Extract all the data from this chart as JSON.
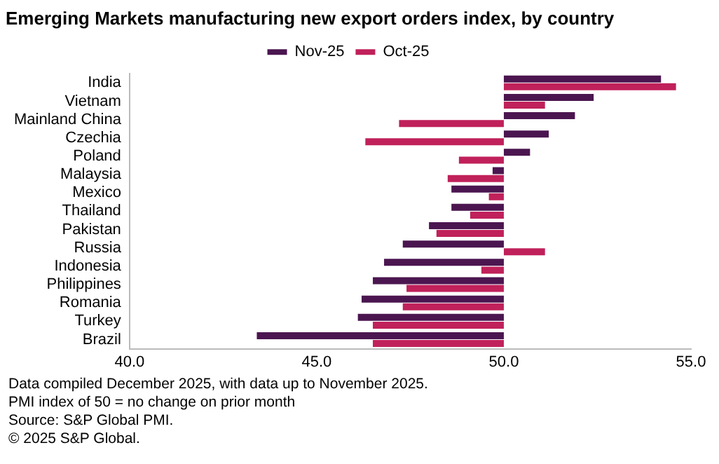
{
  "chart_data": {
    "type": "bar",
    "orientation": "horizontal",
    "title": "Emerging Markets manufacturing new export orders index, by country",
    "categories": [
      "India",
      "Vietnam",
      "Mainland China",
      "Czechia",
      "Poland",
      "Malaysia",
      "Mexico",
      "Thailand",
      "Pakistan",
      "Russia",
      "Indonesia",
      "Philippines",
      "Romania",
      "Turkey",
      "Brazil"
    ],
    "series": [
      {
        "name": "Nov-25",
        "color": "#4b1650",
        "base": [
          50,
          50,
          50,
          50,
          50,
          50,
          50,
          50,
          50,
          50,
          50,
          50,
          50,
          50,
          50
        ],
        "values": [
          4.2,
          2.4,
          1.9,
          1.2,
          0.7,
          -0.3,
          -1.4,
          -1.4,
          -2.0,
          -2.7,
          -3.2,
          -3.5,
          -3.8,
          -3.9,
          -6.6
        ]
      },
      {
        "name": "Oct-25",
        "color": "#c0215a",
        "base": [
          50,
          50,
          50,
          50,
          50,
          50,
          50,
          50,
          50,
          50,
          50,
          50,
          50,
          50,
          50
        ],
        "values": [
          4.6,
          1.1,
          -2.8,
          -3.7,
          -1.2,
          -1.5,
          -0.4,
          -0.9,
          -1.8,
          1.1,
          -0.6,
          -2.6,
          -2.7,
          -3.5,
          -3.5
        ]
      }
    ],
    "xlim": [
      40,
      55
    ],
    "xticks": [
      {
        "value": 40,
        "label": "40.0"
      },
      {
        "value": 45,
        "label": "45.0"
      },
      {
        "value": 50,
        "label": "50.0"
      },
      {
        "value": 55,
        "label": "55.0"
      }
    ],
    "grid": false,
    "legend": "top",
    "annotations": [
      "Data compiled December 2025, with data up to November 2025.",
      "PMI index of 50 = no change on prior month",
      "Source: S&P Global PMI.",
      "© 2025 S&P Global."
    ]
  }
}
